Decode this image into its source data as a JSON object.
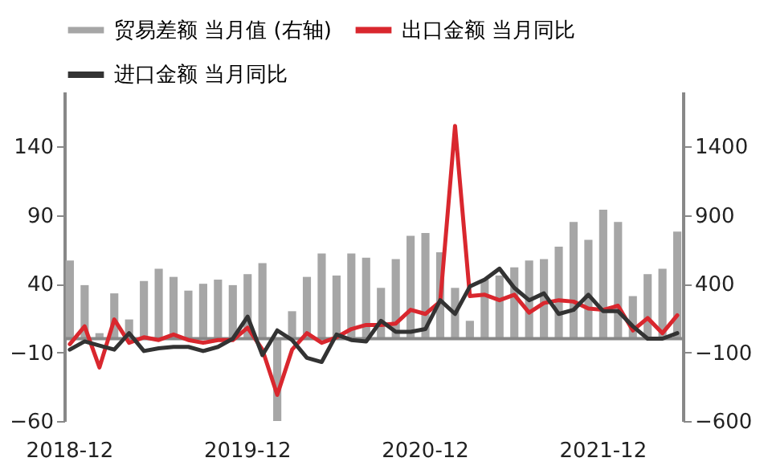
{
  "chart_data": {
    "type": "bar",
    "categories": [
      "2018-12",
      null,
      null,
      null,
      null,
      null,
      null,
      null,
      null,
      null,
      null,
      null,
      "2019-12",
      null,
      null,
      null,
      null,
      null,
      null,
      null,
      null,
      null,
      null,
      null,
      "2020-12",
      null,
      null,
      null,
      null,
      null,
      null,
      null,
      null,
      null,
      null,
      null,
      "2021-12",
      null,
      null,
      null,
      null,
      null
    ],
    "series": [
      {
        "name": "贸易差额 当月值 (右轴)",
        "type": "bar",
        "axis": "y2",
        "color": "#a6a6a6",
        "values": [
          570,
          390,
          40,
          330,
          140,
          420,
          510,
          450,
          350,
          400,
          430,
          390,
          470,
          550,
          -600,
          200,
          450,
          620,
          460,
          620,
          590,
          370,
          580,
          750,
          770,
          630,
          370,
          130,
          430,
          460,
          520,
          570,
          580,
          670,
          850,
          720,
          940,
          850,
          310,
          470,
          510,
          780
        ]
      },
      {
        "name": "出口金额 当月同比",
        "type": "line",
        "color": "#d9272e",
        "values": [
          -4,
          9,
          -21,
          14,
          -3,
          1,
          -1,
          3,
          -1,
          -3,
          -1,
          -1,
          8,
          -8,
          -41,
          -8,
          4,
          -3,
          1,
          7,
          10,
          10,
          11,
          21,
          18,
          27,
          155,
          31,
          32,
          28,
          32,
          19,
          26,
          28,
          27,
          22,
          21,
          24,
          6,
          15,
          4,
          17
        ]
      },
      {
        "name": "进口金额 当月同比",
        "type": "line",
        "color": "#333333",
        "values": [
          -8,
          -2,
          -5,
          -8,
          4,
          -9,
          -7,
          -6,
          -6,
          -9,
          -6,
          0,
          16,
          -12,
          6,
          -1,
          -14,
          -17,
          3,
          -1,
          -2,
          13,
          5,
          5,
          7,
          28,
          18,
          38,
          43,
          51,
          37,
          28,
          33,
          18,
          21,
          32,
          20,
          20,
          9,
          0,
          0,
          4
        ]
      }
    ],
    "ylim": [
      -60,
      180
    ],
    "yticks": [
      -60,
      -10,
      40,
      90,
      140
    ],
    "y2lim": [
      -600,
      1800
    ],
    "y2ticks": [
      -600,
      -100,
      400,
      900,
      1400
    ],
    "grid": false,
    "legend": "top"
  }
}
